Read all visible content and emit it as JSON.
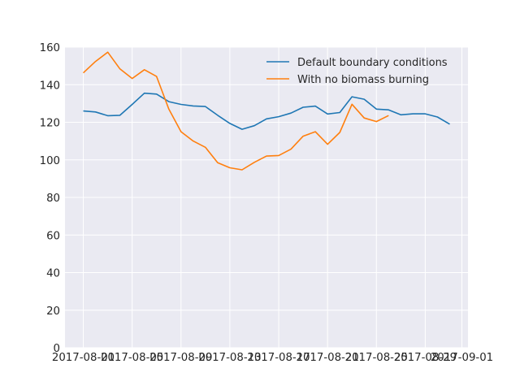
{
  "chart_data": {
    "type": "line",
    "title": "",
    "xlabel": "",
    "ylabel": "",
    "ylim": [
      0,
      160
    ],
    "xlim": [
      "2017-07-30T12:00",
      "2017-09-01T12:00"
    ],
    "grid": true,
    "legend_position": "top-right",
    "background": "#eaeaf2",
    "x_ticks": [
      {
        "date": "2017-08-01",
        "label": "2017-08-01"
      },
      {
        "date": "2017-08-05",
        "label": "2017-08-05"
      },
      {
        "date": "2017-08-09",
        "label": "2017-08-09"
      },
      {
        "date": "2017-08-13",
        "label": "2017-08-13"
      },
      {
        "date": "2017-08-17",
        "label": "2017-08-17"
      },
      {
        "date": "2017-08-21",
        "label": "2017-08-21"
      },
      {
        "date": "2017-08-25",
        "label": "2017-08-25"
      },
      {
        "date": "2017-08-29",
        "label": "2017-08-29"
      },
      {
        "date": "2017-09-01",
        "label": "2017-09-01"
      }
    ],
    "y_ticks": [
      0,
      20,
      40,
      60,
      80,
      100,
      120,
      140,
      160
    ],
    "series": [
      {
        "name": "Default boundary conditions",
        "color": "#1f77b4",
        "x": [
          "2017-08-01",
          "2017-08-02",
          "2017-08-03",
          "2017-08-04",
          "2017-08-05",
          "2017-08-06",
          "2017-08-07",
          "2017-08-08",
          "2017-08-09",
          "2017-08-10",
          "2017-08-11",
          "2017-08-12",
          "2017-08-13",
          "2017-08-14",
          "2017-08-15",
          "2017-08-16",
          "2017-08-17",
          "2017-08-18",
          "2017-08-19",
          "2017-08-20",
          "2017-08-21",
          "2017-08-22",
          "2017-08-23",
          "2017-08-24",
          "2017-08-25",
          "2017-08-26",
          "2017-08-27",
          "2017-08-28",
          "2017-08-29",
          "2017-08-30",
          "2017-08-31"
        ],
        "values": [
          126,
          125.5,
          123.5,
          123.7,
          129.5,
          135.5,
          135,
          131,
          129.5,
          128.7,
          128.4,
          123.7,
          119.4,
          116.3,
          118.2,
          121.8,
          123,
          124.9,
          128,
          128.6,
          124.4,
          125.2,
          133.6,
          132.3,
          127,
          126.6,
          124,
          124.5,
          124.5,
          122.8,
          119
        ]
      },
      {
        "name": "With no biomass burning",
        "color": "#ff7f0e",
        "x": [
          "2017-08-01",
          "2017-08-02",
          "2017-08-03",
          "2017-08-04",
          "2017-08-05",
          "2017-08-06",
          "2017-08-07",
          "2017-08-08",
          "2017-08-09",
          "2017-08-10",
          "2017-08-11",
          "2017-08-12",
          "2017-08-13",
          "2017-08-14",
          "2017-08-15",
          "2017-08-16",
          "2017-08-17",
          "2017-08-18",
          "2017-08-19",
          "2017-08-20",
          "2017-08-21",
          "2017-08-22",
          "2017-08-23",
          "2017-08-24",
          "2017-08-25",
          "2017-08-26"
        ],
        "values": [
          146.3,
          152.4,
          157.3,
          148.4,
          143.3,
          148,
          144.4,
          127,
          115,
          110,
          106.7,
          98.5,
          95.8,
          94.7,
          98.7,
          102,
          102.3,
          105.7,
          112.6,
          115,
          108.3,
          114.6,
          129.6,
          122.3,
          120.4,
          123.6
        ]
      }
    ]
  }
}
